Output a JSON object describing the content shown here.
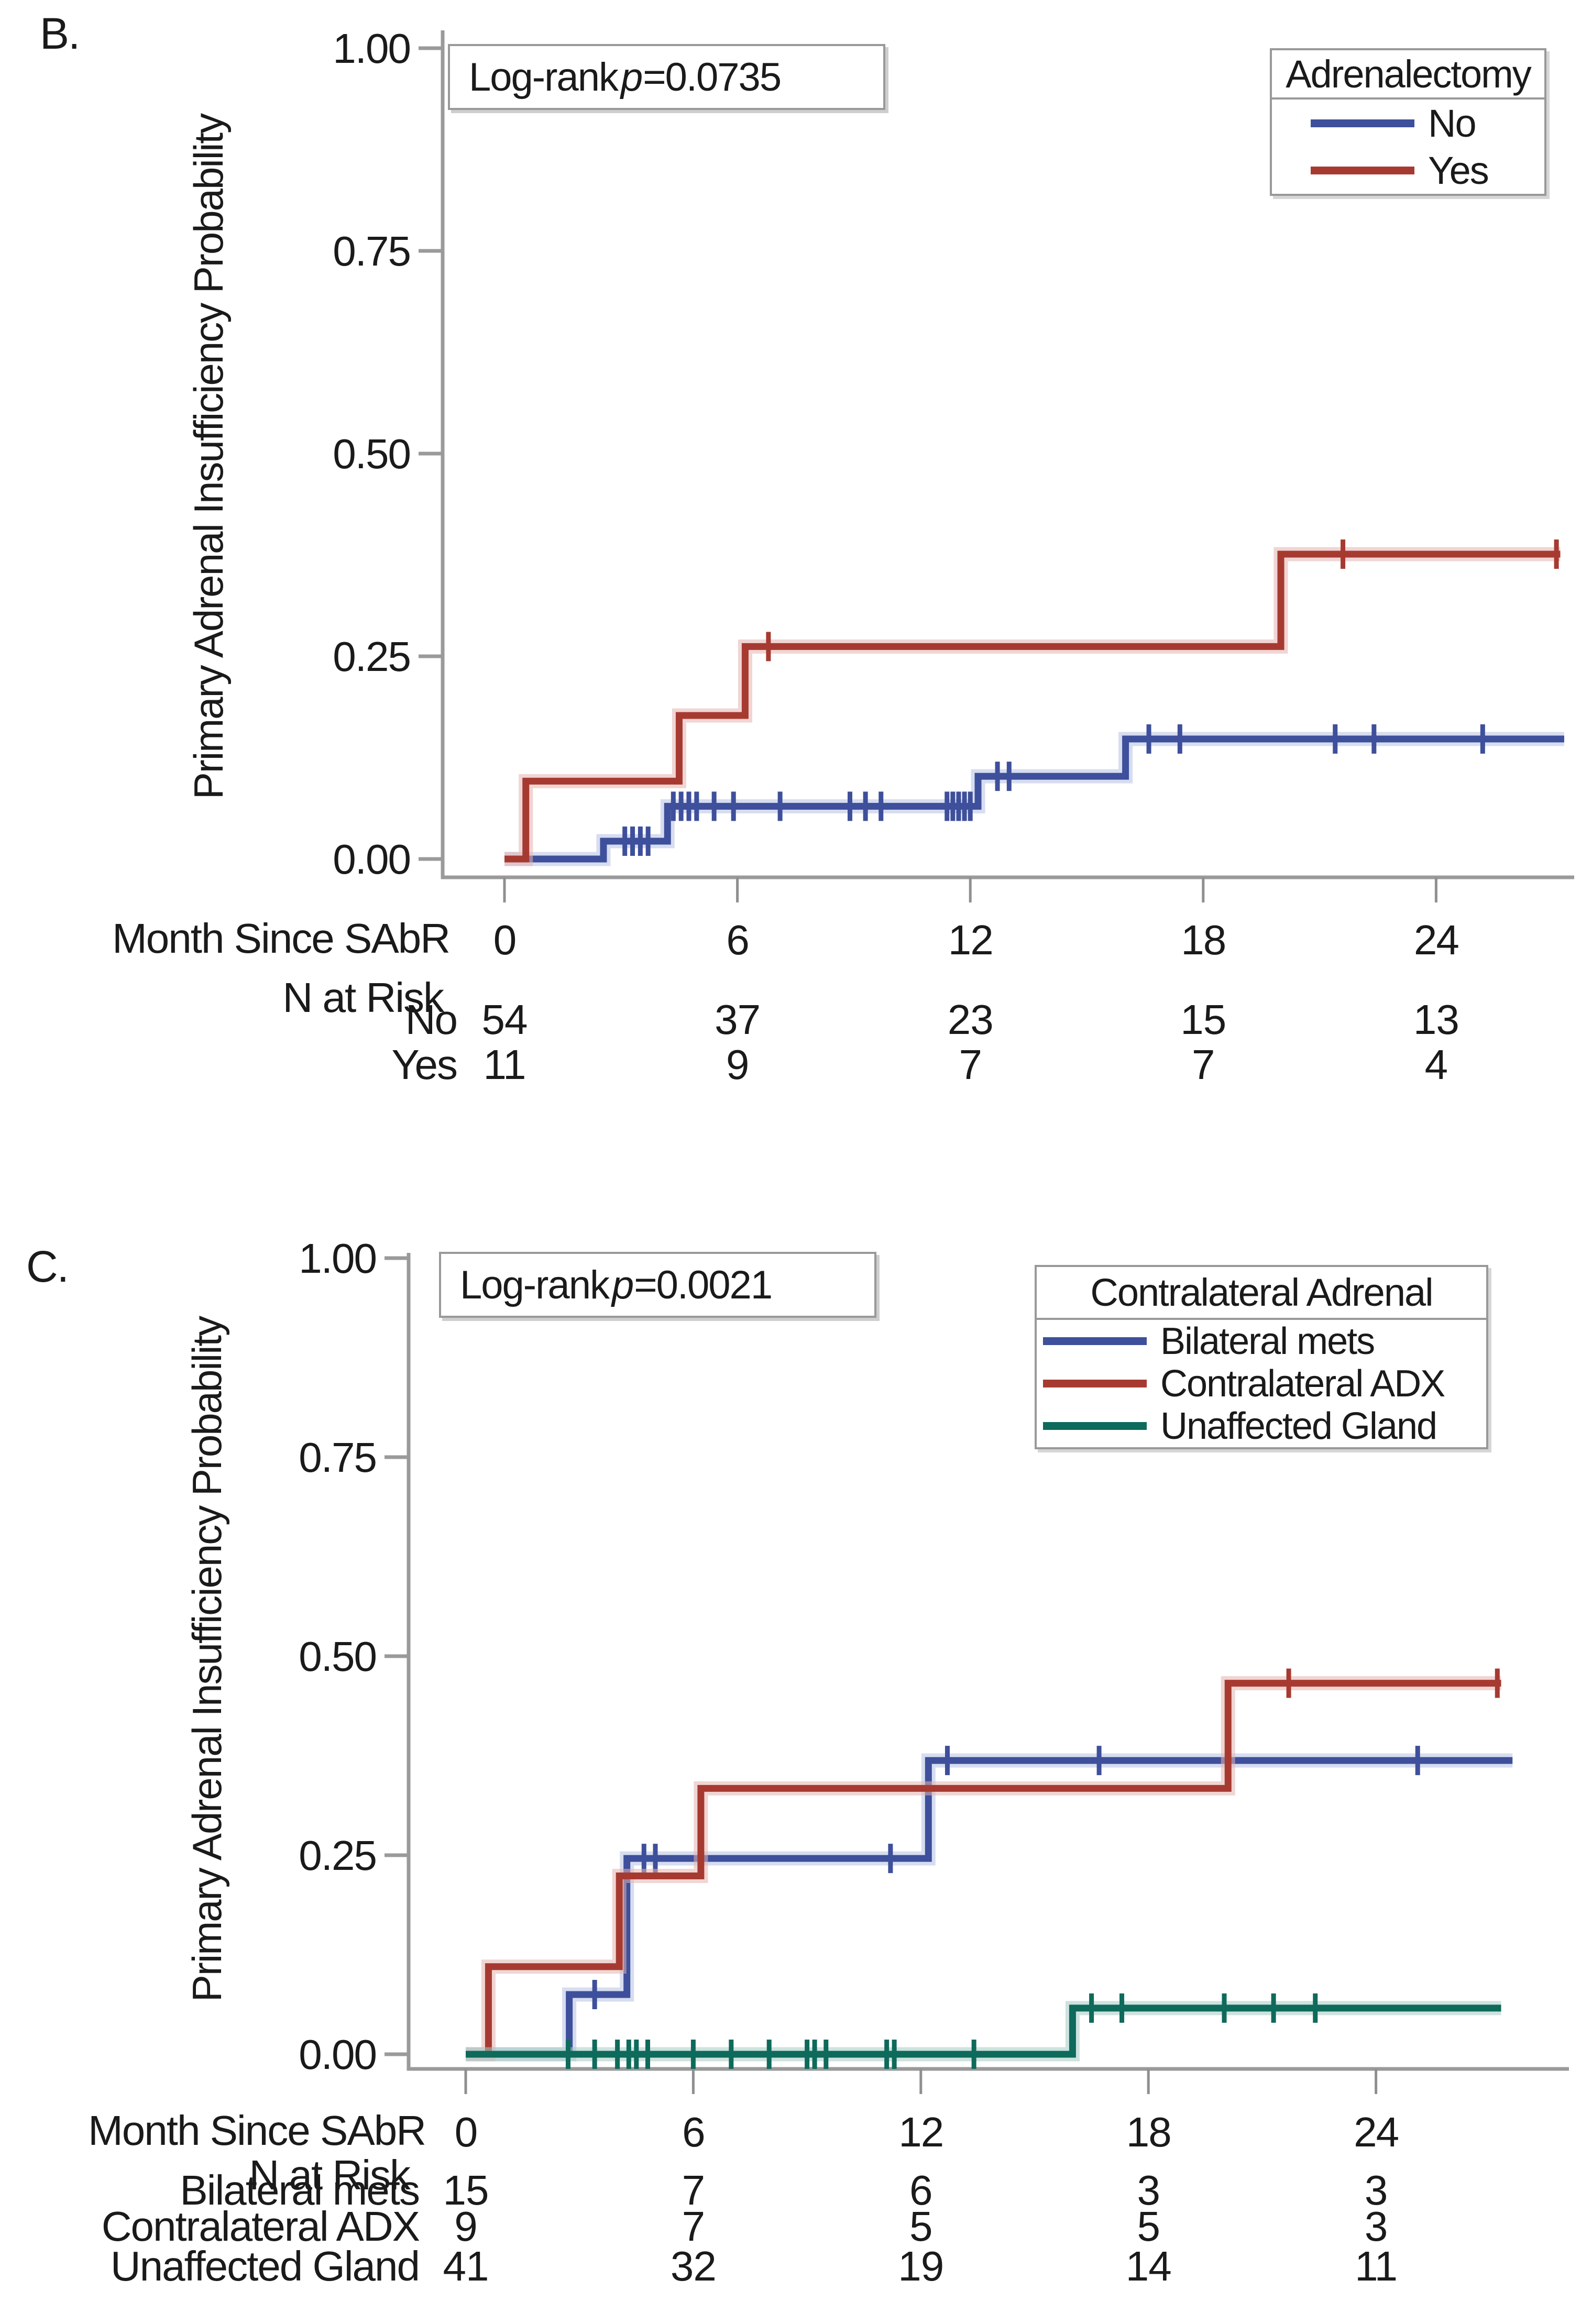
{
  "figure": {
    "background": "#ffffff",
    "axis_color": "#9a9a9a",
    "text_color": "#1a1a1a",
    "accent_blue": "#3E4F9B",
    "accent_red": "#A63A31",
    "accent_green": "#0E6A5B"
  },
  "panels": [
    {
      "label": "B.",
      "ylabel": "Primary Adrenal Insufficiency Probability",
      "xlabel": "Month Since SAbR",
      "logrank": {
        "prefix": "Log-rank",
        "p": "p",
        "value": "=0.0735"
      },
      "legend": {
        "title": "Adrenalectomy",
        "entries": [
          {
            "label": "No",
            "color": "#3E4F9B"
          },
          {
            "label": "Yes",
            "color": "#A63A31"
          }
        ]
      },
      "risk_header": "N at Risk",
      "risk_rows": [
        {
          "label": "No",
          "counts": [
            "54",
            "37",
            "23",
            "15",
            "13"
          ]
        },
        {
          "label": "Yes",
          "counts": [
            "11",
            "9",
            "7",
            "7",
            "4"
          ]
        }
      ]
    },
    {
      "label": "C.",
      "ylabel": "Primary Adrenal Insufficiency Probability",
      "xlabel": "Month Since SAbR",
      "logrank": {
        "prefix": "Log-rank",
        "p": "p",
        "value": "=0.0021"
      },
      "legend": {
        "title": "Contralateral Adrenal",
        "entries": [
          {
            "label": "Bilateral mets",
            "color": "#3E4F9B"
          },
          {
            "label": "Contralateral ADX",
            "color": "#A63A31"
          },
          {
            "label": "Unaffected Gland",
            "color": "#0E6A5B"
          }
        ]
      },
      "risk_header": "N at Risk",
      "risk_rows": [
        {
          "label": "Bilateral mets",
          "counts": [
            "15",
            "7",
            "6",
            "3",
            "3"
          ]
        },
        {
          "label": "Contralateral ADX",
          "counts": [
            "9",
            "7",
            "5",
            "5",
            "3"
          ]
        },
        {
          "label": "Unaffected Gland",
          "counts": [
            "41",
            "32",
            "19",
            "14",
            "11"
          ]
        }
      ]
    }
  ],
  "chart_data": [
    {
      "type": "line",
      "subtype": "kaplan_meier_step_cumulative_incidence",
      "panel": "B",
      "title": "",
      "xlabel": "Month Since SAbR",
      "ylabel": "Primary Adrenal Insufficiency Probability",
      "xlim": [
        0,
        27.5
      ],
      "ylim": [
        0,
        1
      ],
      "xticks": [
        0,
        6,
        12,
        18,
        24
      ],
      "yticks": [
        0,
        0.25,
        0.5,
        0.75,
        1
      ],
      "grid": false,
      "legend_title": "Adrenalectomy",
      "legend_position": "top-right",
      "annotation": "Log-rank p=0.0735",
      "series": [
        {
          "name": "No",
          "color": "#3E4F9B",
          "halo": "#b7c1e3",
          "steps": [
            [
              0,
              0
            ],
            [
              2.55,
              0.022
            ],
            [
              4.2,
              0.065
            ],
            [
              12.2,
              0.102
            ],
            [
              16,
              0.148
            ]
          ],
          "end_x": 27.3,
          "censors": [
            [
              3.1,
              0.022
            ],
            [
              3.3,
              0.022
            ],
            [
              3.5,
              0.022
            ],
            [
              3.7,
              0.022
            ],
            [
              4.35,
              0.065
            ],
            [
              4.55,
              0.065
            ],
            [
              4.75,
              0.065
            ],
            [
              4.95,
              0.065
            ],
            [
              5.4,
              0.065
            ],
            [
              5.9,
              0.065
            ],
            [
              7.1,
              0.065
            ],
            [
              8.9,
              0.065
            ],
            [
              9.3,
              0.065
            ],
            [
              9.7,
              0.065
            ],
            [
              11.4,
              0.065
            ],
            [
              11.55,
              0.065
            ],
            [
              11.7,
              0.065
            ],
            [
              11.85,
              0.065
            ],
            [
              12.0,
              0.065
            ],
            [
              12.7,
              0.102
            ],
            [
              13.0,
              0.102
            ],
            [
              16.6,
              0.148
            ],
            [
              17.4,
              0.148
            ],
            [
              21.4,
              0.148
            ],
            [
              22.4,
              0.148
            ],
            [
              25.2,
              0.148
            ]
          ]
        },
        {
          "name": "Yes",
          "color": "#A63A31",
          "halo": "#e3b3ae",
          "steps": [
            [
              0,
              0
            ],
            [
              0.55,
              0.096
            ],
            [
              4.5,
              0.177
            ],
            [
              6.2,
              0.262
            ],
            [
              20,
              0.376
            ]
          ],
          "end_x": 27.2,
          "censors": [
            [
              6.8,
              0.262
            ],
            [
              21.6,
              0.376
            ],
            [
              27.1,
              0.376
            ]
          ]
        }
      ]
    },
    {
      "type": "line",
      "subtype": "kaplan_meier_step_cumulative_incidence",
      "panel": "C",
      "title": "",
      "xlabel": "Month Since SAbR",
      "ylabel": "Primary Adrenal Insufficiency Probability",
      "xlim": [
        0,
        27.8
      ],
      "ylim": [
        0,
        1
      ],
      "xticks": [
        0,
        6,
        12,
        18,
        24
      ],
      "yticks": [
        0,
        0.25,
        0.5,
        0.75,
        1
      ],
      "grid": false,
      "legend_title": "Contralateral Adrenal",
      "legend_position": "top-right",
      "annotation": "Log-rank p=0.0021",
      "series": [
        {
          "name": "Bilateral mets",
          "color": "#3E4F9B",
          "halo": "#b7c1e3",
          "steps": [
            [
              0,
              0
            ],
            [
              2.73,
              0.075
            ],
            [
              4.25,
              0.246
            ],
            [
              12.2,
              0.369
            ]
          ],
          "end_x": 27.6,
          "censors": [
            [
              3.4,
              0.075
            ],
            [
              4.7,
              0.246
            ],
            [
              5.0,
              0.246
            ],
            [
              11.2,
              0.246
            ],
            [
              12.7,
              0.369
            ],
            [
              16.7,
              0.369
            ],
            [
              25.1,
              0.369
            ]
          ]
        },
        {
          "name": "Contralateral ADX",
          "color": "#A63A31",
          "halo": "#e3b3ae",
          "steps": [
            [
              0,
              0
            ],
            [
              0.6,
              0.11
            ],
            [
              4.05,
              0.224
            ],
            [
              6.2,
              0.334
            ],
            [
              20.1,
              0.466
            ]
          ],
          "end_x": 27.3,
          "censors": [
            [
              21.7,
              0.466
            ],
            [
              27.2,
              0.466
            ]
          ]
        },
        {
          "name": "Unaffected Gland",
          "color": "#0E6A5B",
          "halo": "#a5cac2",
          "steps": [
            [
              0,
              0
            ],
            [
              16,
              0.058
            ]
          ],
          "end_x": 27.3,
          "censors": [
            [
              2.7,
              0
            ],
            [
              3.4,
              0
            ],
            [
              4.0,
              0
            ],
            [
              4.3,
              0
            ],
            [
              4.5,
              0
            ],
            [
              4.8,
              0
            ],
            [
              6.0,
              0
            ],
            [
              7.0,
              0
            ],
            [
              8.0,
              0
            ],
            [
              9.0,
              0
            ],
            [
              9.2,
              0
            ],
            [
              9.5,
              0
            ],
            [
              11.1,
              0
            ],
            [
              11.3,
              0
            ],
            [
              13.4,
              0
            ],
            [
              16.5,
              0.058
            ],
            [
              17.3,
              0.058
            ],
            [
              20.0,
              0.058
            ],
            [
              21.3,
              0.058
            ],
            [
              22.4,
              0.058
            ]
          ]
        }
      ]
    }
  ]
}
